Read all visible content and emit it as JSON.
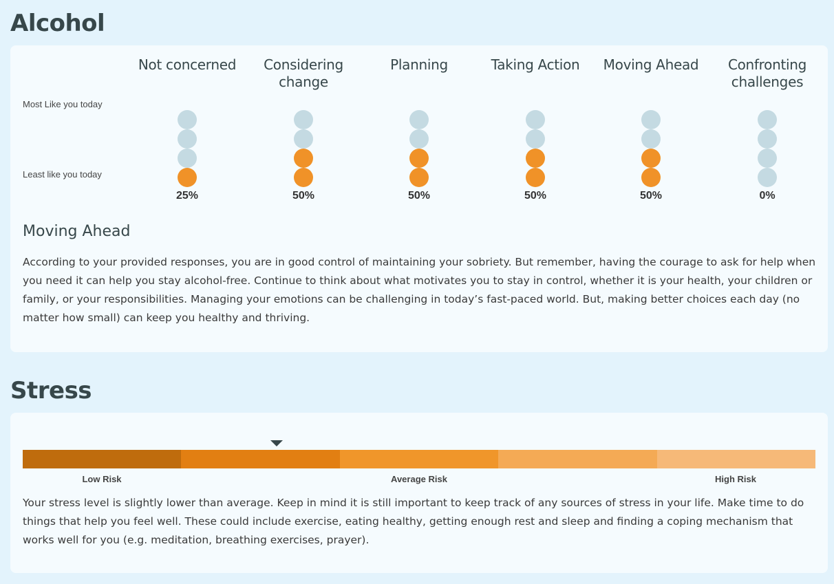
{
  "alcohol": {
    "title": "Alcohol",
    "most_label": "Most Like you today",
    "least_label": "Least like you today",
    "stages": [
      {
        "name": "Not concerned",
        "filled": 1,
        "percent": "25%"
      },
      {
        "name": "Considering change",
        "filled": 2,
        "percent": "50%"
      },
      {
        "name": "Planning",
        "filled": 2,
        "percent": "50%"
      },
      {
        "name": "Taking Action",
        "filled": 2,
        "percent": "50%"
      },
      {
        "name": "Moving Ahead",
        "filled": 2,
        "percent": "50%"
      },
      {
        "name": "Confronting challenges",
        "filled": 0,
        "percent": "0%"
      }
    ],
    "result_heading": "Moving Ahead",
    "result_text": "According to your provided responses, you are in good control of maintaining your sobriety. But remember, having the courage to ask for help when you need it can help you stay alcohol-free. Continue to think about what motivates you to stay in control, whether it is your health, your children or family, or your responsibilities. Managing your emotions can be challenging in today’s fast-paced world. But, making better choices each day (no matter how small) can keep you healthy and thriving."
  },
  "stress": {
    "title": "Stress",
    "scale_colors": [
      "#bf6c0d",
      "#e27f12",
      "#f0962a",
      "#f4aa55",
      "#f6b978"
    ],
    "marker_position": 0.32,
    "labels": {
      "low": "Low Risk",
      "average": "Average Risk",
      "high": "High Risk"
    },
    "text": "Your stress level is slightly lower than average. Keep in mind it is still important to keep track of any sources of stress in your life. Make time to do things that help you feel well. These could include exercise, eating healthy, getting enough rest and sleep and finding a coping mechanism that works well for you (e.g. meditation, breathing exercises, prayer)."
  },
  "colors": {
    "filled": "#f09228",
    "empty": "#c4dae2"
  }
}
